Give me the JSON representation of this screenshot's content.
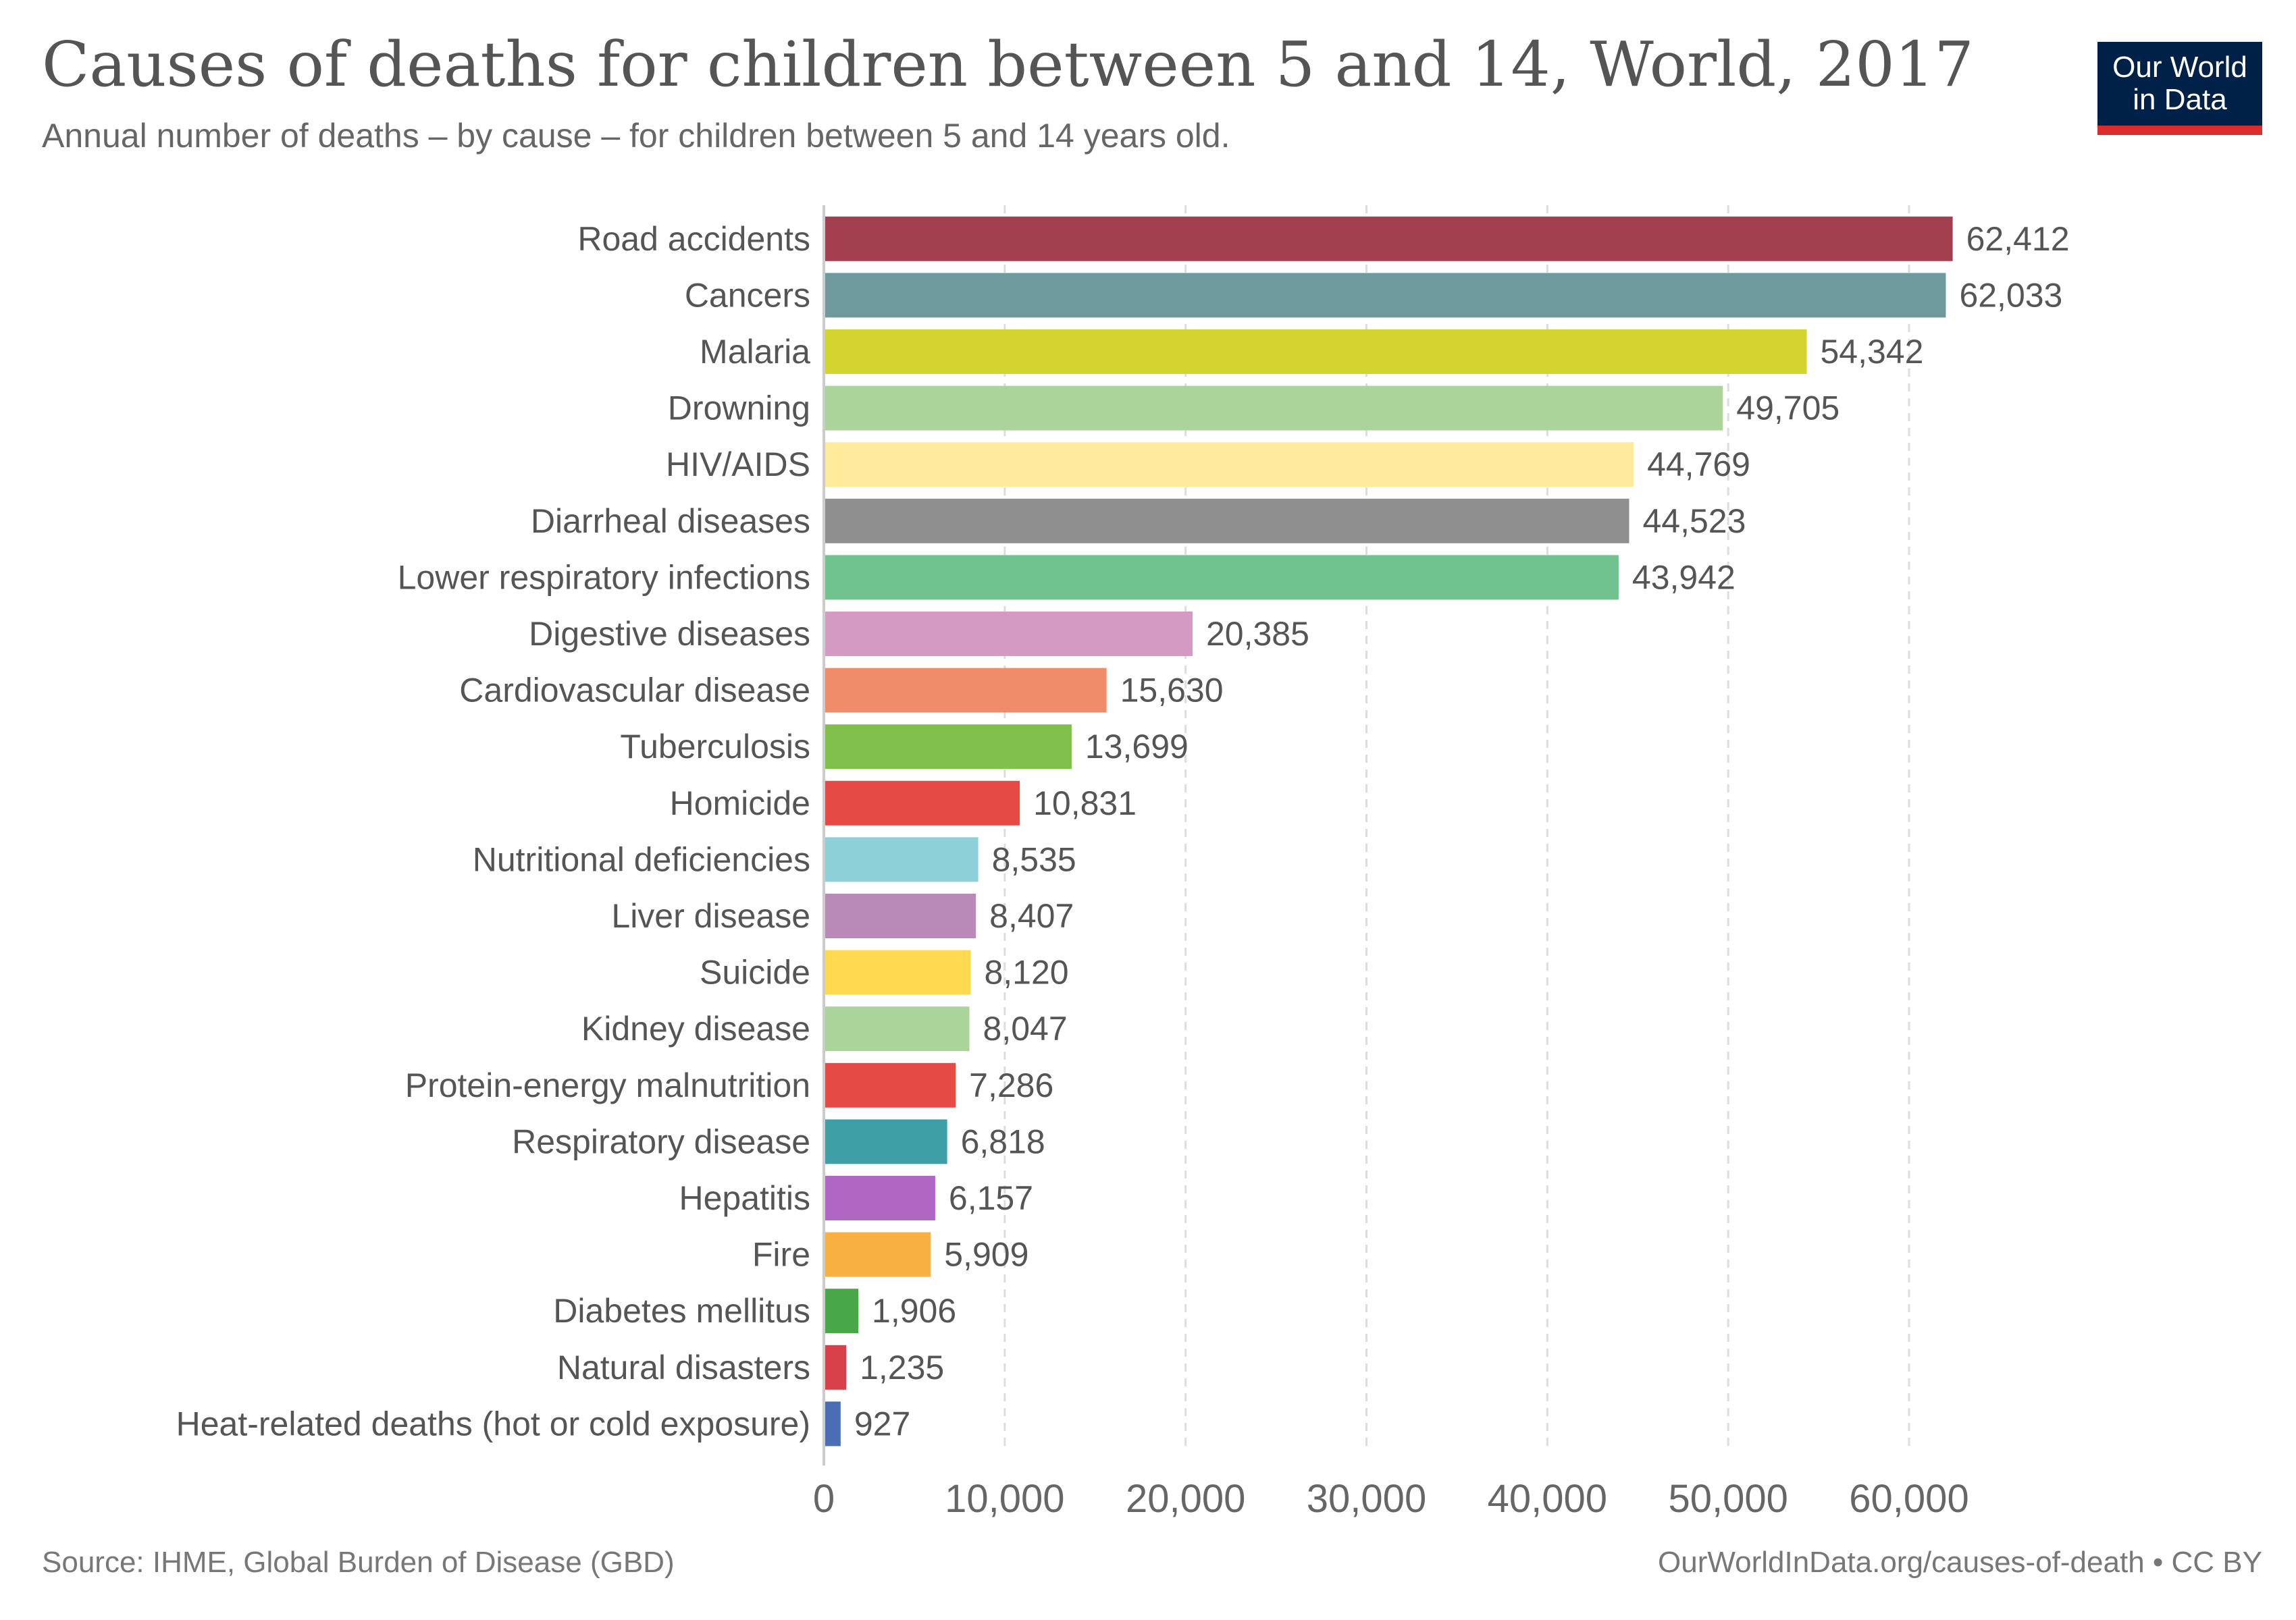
{
  "title": "Causes of deaths for children between 5 and 14, World, 2017",
  "subtitle": "Annual number of deaths – by cause – for children between 5 and 14 years old.",
  "logo": {
    "line1": "Our World",
    "line2": "in Data"
  },
  "footer": {
    "source": "Source: IHME, Global Burden of Disease (GBD)",
    "link": "OurWorldInData.org/causes-of-death • CC BY"
  },
  "colors": {
    "logo_background": "#002147",
    "logo_accent": "#dc2d2d"
  },
  "chart_data": {
    "type": "bar",
    "orientation": "horizontal",
    "grid": true,
    "xlim": [
      0,
      65000
    ],
    "ticks": [
      0,
      10000,
      20000,
      30000,
      40000,
      50000,
      60000
    ],
    "tick_labels": [
      "0",
      "10,000",
      "20,000",
      "30,000",
      "40,000",
      "50,000",
      "60,000"
    ],
    "categories": [
      "Road accidents",
      "Cancers",
      "Malaria",
      "Drowning",
      "HIV/AIDS",
      "Diarrheal diseases",
      "Lower respiratory infections",
      "Digestive diseases",
      "Cardiovascular disease",
      "Tuberculosis",
      "Homicide",
      "Nutritional deficiencies",
      "Liver disease",
      "Suicide",
      "Kidney disease",
      "Protein-energy malnutrition",
      "Respiratory disease",
      "Hepatitis",
      "Fire",
      "Diabetes mellitus",
      "Natural disasters",
      "Heat-related deaths (hot or cold exposure)"
    ],
    "values": [
      62412,
      62033,
      54342,
      49705,
      44769,
      44523,
      43942,
      20385,
      15630,
      13699,
      10831,
      8535,
      8407,
      8120,
      8047,
      7286,
      6818,
      6157,
      5909,
      1906,
      1235,
      927
    ],
    "value_labels": [
      "62,412",
      "62,033",
      "54,342",
      "49,705",
      "44,769",
      "44,523",
      "43,942",
      "20,385",
      "15,630",
      "13,699",
      "10,831",
      "8,535",
      "8,407",
      "8,120",
      "8,047",
      "7,286",
      "6,818",
      "6,157",
      "5,909",
      "1,906",
      "1,235",
      "927"
    ],
    "colors": [
      "#a2404f",
      "#6e9a9e",
      "#d4d430",
      "#aad49a",
      "#feea9a",
      "#8f8f8f",
      "#70c28f",
      "#d49ac4",
      "#f08c6a",
      "#7ec04a",
      "#e64a45",
      "#8ed0d8",
      "#b98ab8",
      "#ffda50",
      "#aad49a",
      "#e64a45",
      "#3ea0a6",
      "#b266c4",
      "#f8b040",
      "#48a848",
      "#d8404a",
      "#4a6eb4"
    ]
  }
}
